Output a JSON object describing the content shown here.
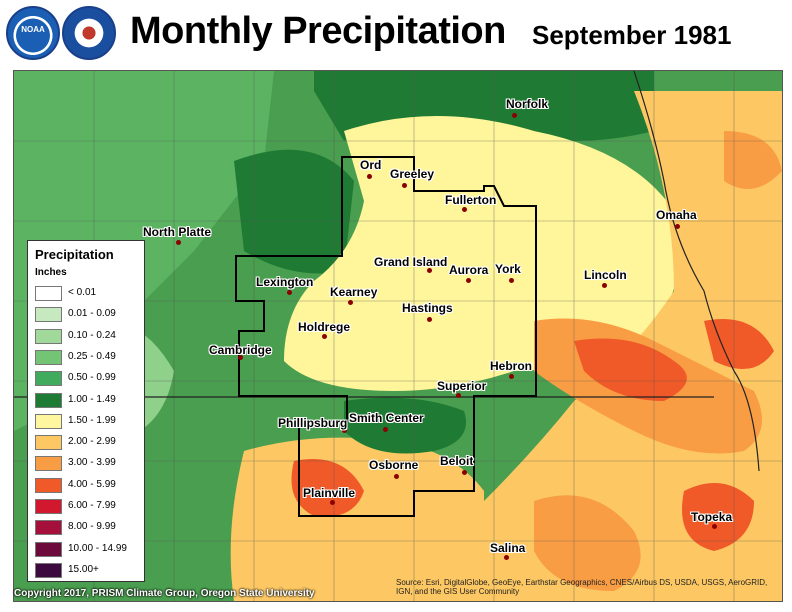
{
  "header": {
    "title": "Monthly Precipitation",
    "subtitle": "September 1981",
    "noaa_logo_text": "NOAA",
    "nws_logo_text": "NATIONAL WEATHER SERVICE"
  },
  "legend": {
    "title": "Precipitation",
    "units": "Inches",
    "items": [
      {
        "label": "< 0.01",
        "color": "#ffffff"
      },
      {
        "label": "0.01 - 0.09",
        "color": "#c7e9c0"
      },
      {
        "label": "0.10 - 0.24",
        "color": "#a1d99b"
      },
      {
        "label": "0.25 - 0.49",
        "color": "#74c476"
      },
      {
        "label": "0.50 - 0.99",
        "color": "#41ab5d"
      },
      {
        "label": "1.00 - 1.49",
        "color": "#1e7b33"
      },
      {
        "label": "1.50 - 1.99",
        "color": "#fff7a0"
      },
      {
        "label": "2.00 - 2.99",
        "color": "#fdc863"
      },
      {
        "label": "3.00 - 3.99",
        "color": "#f99d45"
      },
      {
        "label": "4.00 - 5.99",
        "color": "#f05a28"
      },
      {
        "label": "6.00 - 7.99",
        "color": "#d1182e"
      },
      {
        "label": "8.00 - 9.99",
        "color": "#a50f3b"
      },
      {
        "label": "10.00 - 14.99",
        "color": "#6b0a3b"
      },
      {
        "label": "15.00+",
        "color": "#3d0a3f"
      }
    ]
  },
  "cities": [
    {
      "name": "Norfolk"
    },
    {
      "name": "Ord"
    },
    {
      "name": "Greeley"
    },
    {
      "name": "Fullerton"
    },
    {
      "name": "North Platte"
    },
    {
      "name": "Omaha"
    },
    {
      "name": "Grand Island"
    },
    {
      "name": "Aurora"
    },
    {
      "name": "York"
    },
    {
      "name": "Lexington"
    },
    {
      "name": "Kearney"
    },
    {
      "name": "Lincoln"
    },
    {
      "name": "Hastings"
    },
    {
      "name": "Holdrege"
    },
    {
      "name": "Cambridge"
    },
    {
      "name": "Hebron"
    },
    {
      "name": "Superior"
    },
    {
      "name": "Phillipsburg"
    },
    {
      "name": "Smith Center"
    },
    {
      "name": "Osborne"
    },
    {
      "name": "Beloit"
    },
    {
      "name": "Plainville"
    },
    {
      "name": "Topeka"
    },
    {
      "name": "Salina"
    }
  ],
  "footer": {
    "copyright": "Copyright 2017, PRISM Climate Group, Oregon State University",
    "source": "Source: Esri, DigitalGlobe, GeoEye, Earthstar Geographics, CNES/Airbus DS, USDA, USGS, AeroGRID, IGN, and the GIS User Community"
  }
}
